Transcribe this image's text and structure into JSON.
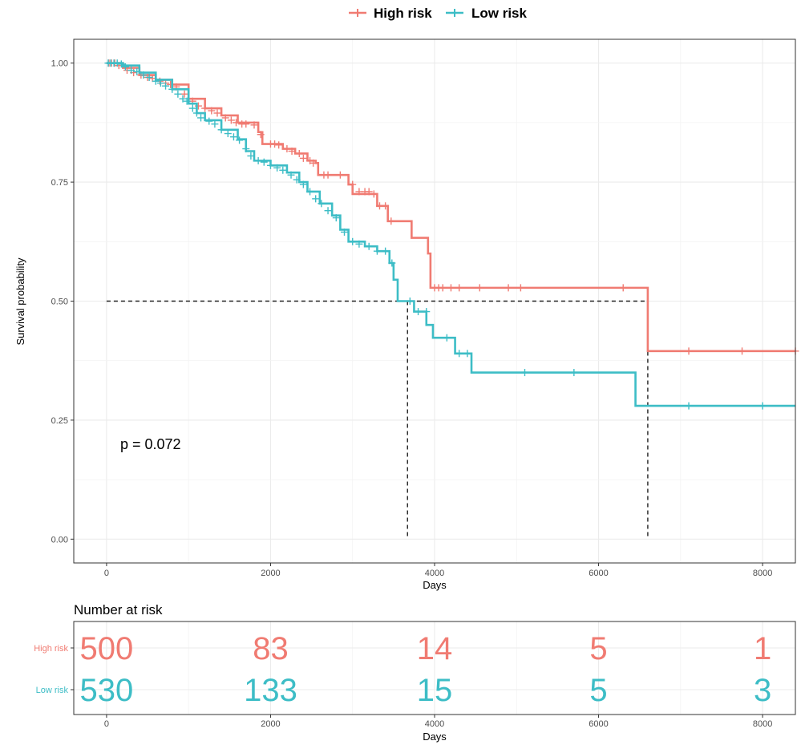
{
  "chart_data": [
    {
      "type": "line",
      "subtype": "kaplan-meier",
      "title": "",
      "xlabel": "Days",
      "ylabel": "Survival probability",
      "xlim": [
        -400,
        8400
      ],
      "ylim": [
        -0.05,
        1.05
      ],
      "xticks": [
        0,
        2000,
        4000,
        6000,
        8000
      ],
      "xtick_labels": [
        "0",
        "2000",
        "4000",
        "6000",
        "8000"
      ],
      "yticks": [
        0,
        0.25,
        0.5,
        0.75,
        1.0
      ],
      "ytick_labels": [
        "0.00",
        "0.25",
        "0.50",
        "0.75",
        "1.00"
      ],
      "grid": true,
      "legend": "top",
      "annotation": "p = 0.072",
      "median_line": {
        "y": 0.5,
        "medians": [
          {
            "series": "Low risk",
            "x": 3670
          },
          {
            "series": "High risk",
            "x": 6600
          }
        ]
      },
      "series": [
        {
          "name": "High risk",
          "color": "#F07B72",
          "steps": [
            [
              0,
              1.0
            ],
            [
              200,
              0.99
            ],
            [
              400,
              0.975
            ],
            [
              600,
              0.965
            ],
            [
              800,
              0.955
            ],
            [
              1000,
              0.925
            ],
            [
              1200,
              0.905
            ],
            [
              1400,
              0.89
            ],
            [
              1600,
              0.875
            ],
            [
              1850,
              0.855
            ],
            [
              1900,
              0.83
            ],
            [
              2150,
              0.82
            ],
            [
              2300,
              0.81
            ],
            [
              2450,
              0.795
            ],
            [
              2550,
              0.79
            ],
            [
              2580,
              0.765
            ],
            [
              2950,
              0.745
            ],
            [
              3000,
              0.725
            ],
            [
              3300,
              0.7
            ],
            [
              3430,
              0.668
            ],
            [
              3720,
              0.633
            ],
            [
              3920,
              0.6
            ],
            [
              3950,
              0.528
            ],
            [
              6600,
              0.395
            ],
            [
              8400,
              0.395
            ]
          ],
          "censors": [
            [
              30,
              1.0
            ],
            [
              60,
              1.0
            ],
            [
              100,
              1.0
            ],
            [
              150,
              0.995
            ],
            [
              250,
              0.985
            ],
            [
              330,
              0.98
            ],
            [
              420,
              0.975
            ],
            [
              500,
              0.97
            ],
            [
              560,
              0.968
            ],
            [
              650,
              0.962
            ],
            [
              720,
              0.958
            ],
            [
              780,
              0.955
            ],
            [
              850,
              0.95
            ],
            [
              950,
              0.935
            ],
            [
              1050,
              0.92
            ],
            [
              1120,
              0.91
            ],
            [
              1200,
              0.905
            ],
            [
              1280,
              0.9
            ],
            [
              1350,
              0.895
            ],
            [
              1450,
              0.885
            ],
            [
              1520,
              0.88
            ],
            [
              1580,
              0.875
            ],
            [
              1650,
              0.872
            ],
            [
              1700,
              0.872
            ],
            [
              1800,
              0.87
            ],
            [
              1880,
              0.85
            ],
            [
              2000,
              0.83
            ],
            [
              2050,
              0.83
            ],
            [
              2100,
              0.828
            ],
            [
              2200,
              0.82
            ],
            [
              2260,
              0.815
            ],
            [
              2350,
              0.81
            ],
            [
              2400,
              0.8
            ],
            [
              2480,
              0.795
            ],
            [
              2520,
              0.79
            ],
            [
              2650,
              0.765
            ],
            [
              2700,
              0.765
            ],
            [
              2850,
              0.765
            ],
            [
              3000,
              0.745
            ],
            [
              3080,
              0.73
            ],
            [
              3150,
              0.73
            ],
            [
              3200,
              0.73
            ],
            [
              3260,
              0.725
            ],
            [
              3330,
              0.7
            ],
            [
              3400,
              0.7
            ],
            [
              3470,
              0.668
            ],
            [
              4000,
              0.528
            ],
            [
              4050,
              0.528
            ],
            [
              4100,
              0.528
            ],
            [
              4200,
              0.528
            ],
            [
              4300,
              0.528
            ],
            [
              4550,
              0.528
            ],
            [
              4900,
              0.528
            ],
            [
              5050,
              0.528
            ],
            [
              6300,
              0.528
            ],
            [
              7100,
              0.395
            ],
            [
              7750,
              0.395
            ],
            [
              8400,
              0.395
            ]
          ]
        },
        {
          "name": "Low risk",
          "color": "#3DBDC6",
          "steps": [
            [
              0,
              1.0
            ],
            [
              200,
              0.995
            ],
            [
              400,
              0.98
            ],
            [
              600,
              0.965
            ],
            [
              800,
              0.945
            ],
            [
              1000,
              0.915
            ],
            [
              1100,
              0.895
            ],
            [
              1200,
              0.88
            ],
            [
              1400,
              0.86
            ],
            [
              1600,
              0.84
            ],
            [
              1700,
              0.815
            ],
            [
              1800,
              0.795
            ],
            [
              2000,
              0.785
            ],
            [
              2200,
              0.77
            ],
            [
              2350,
              0.75
            ],
            [
              2450,
              0.73
            ],
            [
              2600,
              0.705
            ],
            [
              2750,
              0.68
            ],
            [
              2850,
              0.65
            ],
            [
              2950,
              0.625
            ],
            [
              3150,
              0.615
            ],
            [
              3300,
              0.605
            ],
            [
              3450,
              0.58
            ],
            [
              3500,
              0.545
            ],
            [
              3550,
              0.5
            ],
            [
              3750,
              0.478
            ],
            [
              3900,
              0.45
            ],
            [
              3980,
              0.423
            ],
            [
              4250,
              0.39
            ],
            [
              4450,
              0.35
            ],
            [
              6450,
              0.28
            ],
            [
              8400,
              0.28
            ]
          ],
          "censors": [
            [
              20,
              1.0
            ],
            [
              50,
              1.0
            ],
            [
              90,
              1.0
            ],
            [
              130,
              1.0
            ],
            [
              180,
              0.998
            ],
            [
              230,
              0.992
            ],
            [
              300,
              0.985
            ],
            [
              370,
              0.982
            ],
            [
              450,
              0.975
            ],
            [
              520,
              0.97
            ],
            [
              600,
              0.962
            ],
            [
              660,
              0.958
            ],
            [
              720,
              0.952
            ],
            [
              800,
              0.945
            ],
            [
              870,
              0.935
            ],
            [
              930,
              0.925
            ],
            [
              980,
              0.92
            ],
            [
              1050,
              0.905
            ],
            [
              1100,
              0.895
            ],
            [
              1150,
              0.885
            ],
            [
              1250,
              0.878
            ],
            [
              1320,
              0.872
            ],
            [
              1400,
              0.86
            ],
            [
              1480,
              0.852
            ],
            [
              1550,
              0.845
            ],
            [
              1620,
              0.838
            ],
            [
              1700,
              0.82
            ],
            [
              1760,
              0.805
            ],
            [
              1850,
              0.795
            ],
            [
              1920,
              0.792
            ],
            [
              2000,
              0.785
            ],
            [
              2080,
              0.78
            ],
            [
              2150,
              0.775
            ],
            [
              2250,
              0.765
            ],
            [
              2320,
              0.755
            ],
            [
              2400,
              0.745
            ],
            [
              2480,
              0.73
            ],
            [
              2550,
              0.715
            ],
            [
              2620,
              0.705
            ],
            [
              2700,
              0.69
            ],
            [
              2800,
              0.675
            ],
            [
              2900,
              0.645
            ],
            [
              3000,
              0.625
            ],
            [
              3080,
              0.62
            ],
            [
              3200,
              0.615
            ],
            [
              3300,
              0.605
            ],
            [
              3400,
              0.605
            ],
            [
              3480,
              0.58
            ],
            [
              3700,
              0.5
            ],
            [
              3800,
              0.478
            ],
            [
              3900,
              0.478
            ],
            [
              4150,
              0.423
            ],
            [
              4300,
              0.39
            ],
            [
              4400,
              0.39
            ],
            [
              5100,
              0.35
            ],
            [
              5700,
              0.35
            ],
            [
              7100,
              0.28
            ],
            [
              8000,
              0.28
            ]
          ]
        }
      ]
    },
    {
      "type": "table",
      "title": "Number at risk",
      "xlabel": "Days",
      "xlim": [
        -400,
        8400
      ],
      "xticks": [
        0,
        2000,
        4000,
        6000,
        8000
      ],
      "xtick_labels": [
        "0",
        "2000",
        "4000",
        "6000",
        "8000"
      ],
      "rows": [
        {
          "name": "High risk",
          "color": "#F07B72",
          "values": [
            "500",
            "83",
            "14",
            "5",
            "1"
          ]
        },
        {
          "name": "Low risk",
          "color": "#3DBDC6",
          "values": [
            "530",
            "133",
            "15",
            "5",
            "3"
          ]
        }
      ]
    }
  ]
}
